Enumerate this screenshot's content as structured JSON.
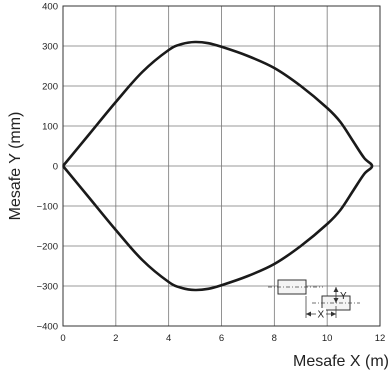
{
  "chart_data": {
    "type": "line",
    "xlabel": "Mesafe X (m)",
    "ylabel": "Mesafe Y (mm)",
    "xlim": [
      0,
      12
    ],
    "ylim": [
      -400,
      400
    ],
    "xticks": [
      "0",
      "2",
      "4",
      "6",
      "8",
      "10",
      "12"
    ],
    "yticks": [
      "400",
      "300",
      "200",
      "100",
      "0",
      "−100",
      "−200",
      "−300",
      "−400"
    ],
    "grid": true,
    "series": [
      {
        "values_x": [
          0,
          1,
          2,
          3,
          4,
          4.5,
          5,
          5.5,
          6,
          7,
          8,
          9,
          10,
          10.5,
          11,
          11.4,
          11.7,
          11.4,
          11,
          10.5,
          10,
          9,
          8,
          7,
          6,
          5.5,
          5,
          4.5,
          4,
          3,
          2,
          1,
          0
        ],
        "values_y": [
          0,
          80,
          160,
          235,
          290,
          305,
          310,
          307,
          298,
          275,
          245,
          200,
          145,
          110,
          60,
          20,
          0,
          -20,
          -60,
          -110,
          -145,
          -200,
          -245,
          -275,
          -298,
          -307,
          -310,
          -305,
          -290,
          -235,
          -160,
          -80,
          0
        ]
      }
    ],
    "inset": {
      "y_label": "Y",
      "x_label": "X"
    }
  }
}
